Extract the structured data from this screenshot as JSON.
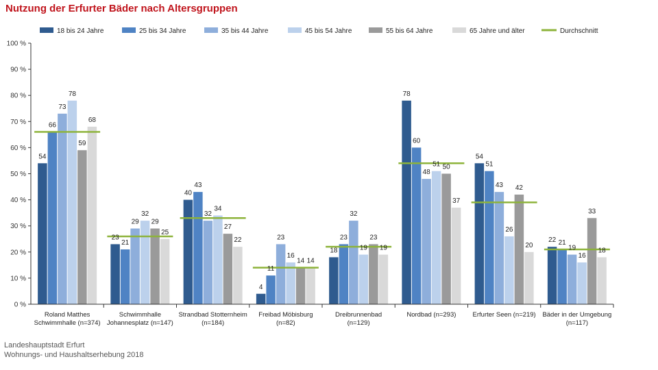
{
  "chart_data": {
    "type": "bar",
    "title": "Nutzung der Erfurter Bäder nach Altersgruppen",
    "categories": [
      "Roland Matthes\nSchwimmhalle (n=374)",
      "Schwimmhalle\nJohannesplatz (n=147)",
      "Strandbad Stotternheim\n(n=184)",
      "Freibad Möbisburg\n(n=82)",
      "Dreibrunnenbad\n(n=129)",
      "Nordbad (n=293)",
      "Erfurter Seen (n=219)",
      "Bäder in der Umgebung\n(n=117)"
    ],
    "series": [
      {
        "name": "18 bis 24 Jahre",
        "color": "#2f5b8f",
        "values": [
          54,
          23,
          40,
          4,
          18,
          78,
          54,
          22
        ]
      },
      {
        "name": "25 bis 34 Jahre",
        "color": "#4f83c4",
        "values": [
          66,
          21,
          43,
          11,
          23,
          60,
          51,
          21
        ]
      },
      {
        "name": "35 bis 44 Jahre",
        "color": "#8eaedb",
        "values": [
          73,
          29,
          32,
          23,
          32,
          48,
          43,
          19
        ]
      },
      {
        "name": "45 bis 54 Jahre",
        "color": "#bcd1ec",
        "values": [
          78,
          32,
          34,
          16,
          19,
          51,
          26,
          16
        ]
      },
      {
        "name": "55 bis 64 Jahre",
        "color": "#9a9a9a",
        "values": [
          59,
          29,
          27,
          14,
          23,
          50,
          42,
          33
        ]
      },
      {
        "name": "65 Jahre und älter",
        "color": "#d9d9d9",
        "values": [
          68,
          25,
          22,
          14,
          19,
          37,
          20,
          18
        ]
      }
    ],
    "average": {
      "name": "Durchschnitt",
      "color": "#8db33a",
      "values": [
        66,
        26,
        33,
        14,
        22,
        54,
        39,
        21
      ]
    },
    "value_labels": [
      [
        "54",
        "66",
        "73",
        "78",
        "59",
        "68"
      ],
      [
        "23",
        "21",
        "29",
        "32",
        "29",
        "25"
      ],
      [
        "40",
        "43",
        "32",
        "34",
        "27",
        "22"
      ],
      [
        "4",
        "11",
        "23",
        "16",
        "14",
        "14"
      ],
      [
        "18",
        "23",
        "32",
        "19",
        "23",
        "19"
      ],
      [
        "78",
        "60",
        "48",
        "51",
        "50",
        "37"
      ],
      [
        "54",
        "51",
        "43",
        "26",
        "42",
        "20"
      ],
      [
        "22",
        "21",
        "19",
        "16",
        "33",
        "18"
      ]
    ],
    "yticks": [
      "0 %",
      "10 %",
      "20 %",
      "30 %",
      "40 %",
      "50 %",
      "60 %",
      "70 %",
      "80 %",
      "90 %",
      "100 %"
    ],
    "ylim": [
      0,
      100
    ],
    "legend_position": "top",
    "grid": false
  },
  "source": {
    "line1": "Landeshauptstadt Erfurt",
    "line2": "Wohnungs- und Haushaltserhebung 2018"
  }
}
